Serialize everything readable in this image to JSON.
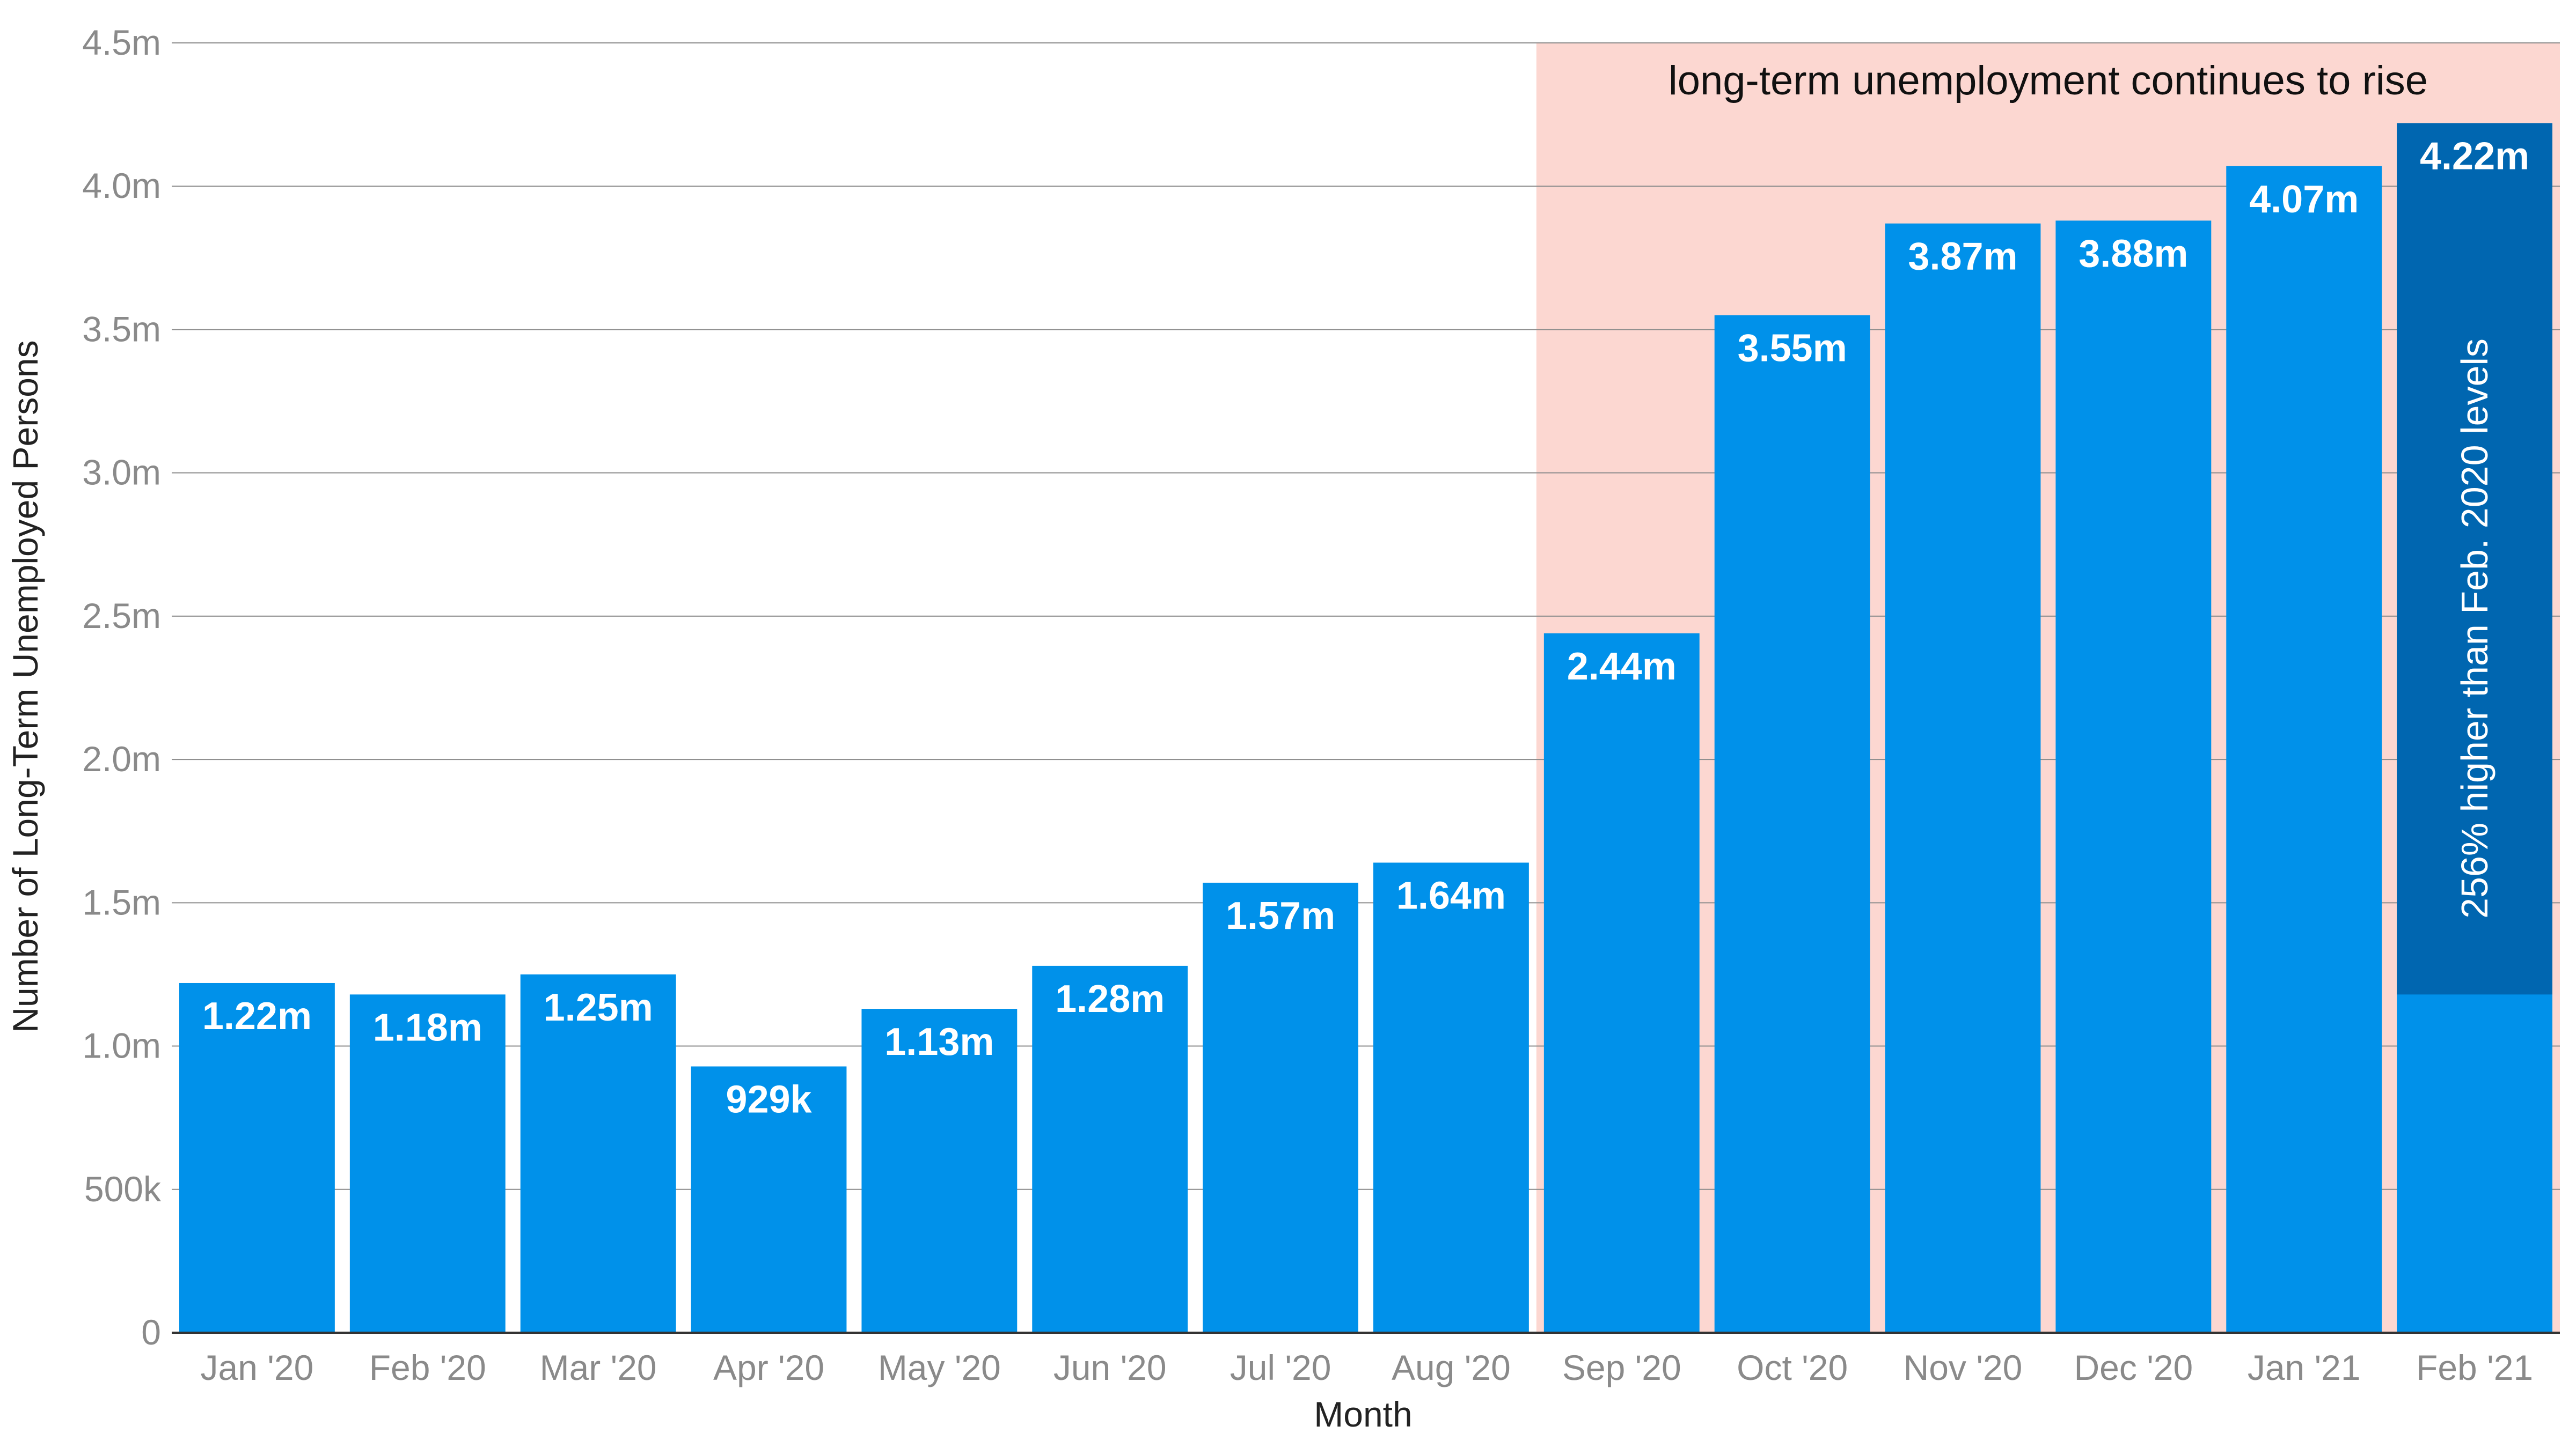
{
  "chart_data": {
    "type": "bar",
    "title": "",
    "xlabel": "Month",
    "ylabel": "Number of Long-Term Unemployed Persons",
    "categories": [
      "Jan '20",
      "Feb '20",
      "Mar '20",
      "Apr '20",
      "May '20",
      "Jun '20",
      "Jul '20",
      "Aug '20",
      "Sep '20",
      "Oct '20",
      "Nov '20",
      "Dec '20",
      "Jan '21",
      "Feb '21"
    ],
    "values": [
      1220000,
      1180000,
      1250000,
      929000,
      1130000,
      1280000,
      1570000,
      1640000,
      2440000,
      3550000,
      3870000,
      3880000,
      4070000,
      4220000
    ],
    "value_labels": [
      "1.22m",
      "1.18m",
      "1.25m",
      "929k",
      "1.13m",
      "1.28m",
      "1.57m",
      "1.64m",
      "2.44m",
      "3.55m",
      "3.87m",
      "3.88m",
      "4.07m",
      "4.22m"
    ],
    "ylim": [
      0,
      4500000
    ],
    "yticks": [
      0,
      500000,
      1000000,
      1500000,
      2000000,
      2500000,
      3000000,
      3500000,
      4000000,
      4500000
    ],
    "ytick_labels": [
      "0",
      "500k",
      "1.0m",
      "1.5m",
      "2.0m",
      "2.5m",
      "3.0m",
      "3.5m",
      "4.0m",
      "4.5m"
    ],
    "grid": true,
    "highlight_region": {
      "from_category": "Sep '20",
      "to_category": "Feb '21",
      "label": "long-term unemployment continues to rise",
      "color": "#fcd7d1"
    },
    "callout": {
      "category": "Feb '21",
      "baseline_value": 1180000,
      "text": "256% higher than Feb. 2020 levels",
      "color": "#0066b0"
    },
    "colors": {
      "bar": "#0091ea",
      "grid": "#8c8c8c",
      "axis": "#333333"
    }
  }
}
